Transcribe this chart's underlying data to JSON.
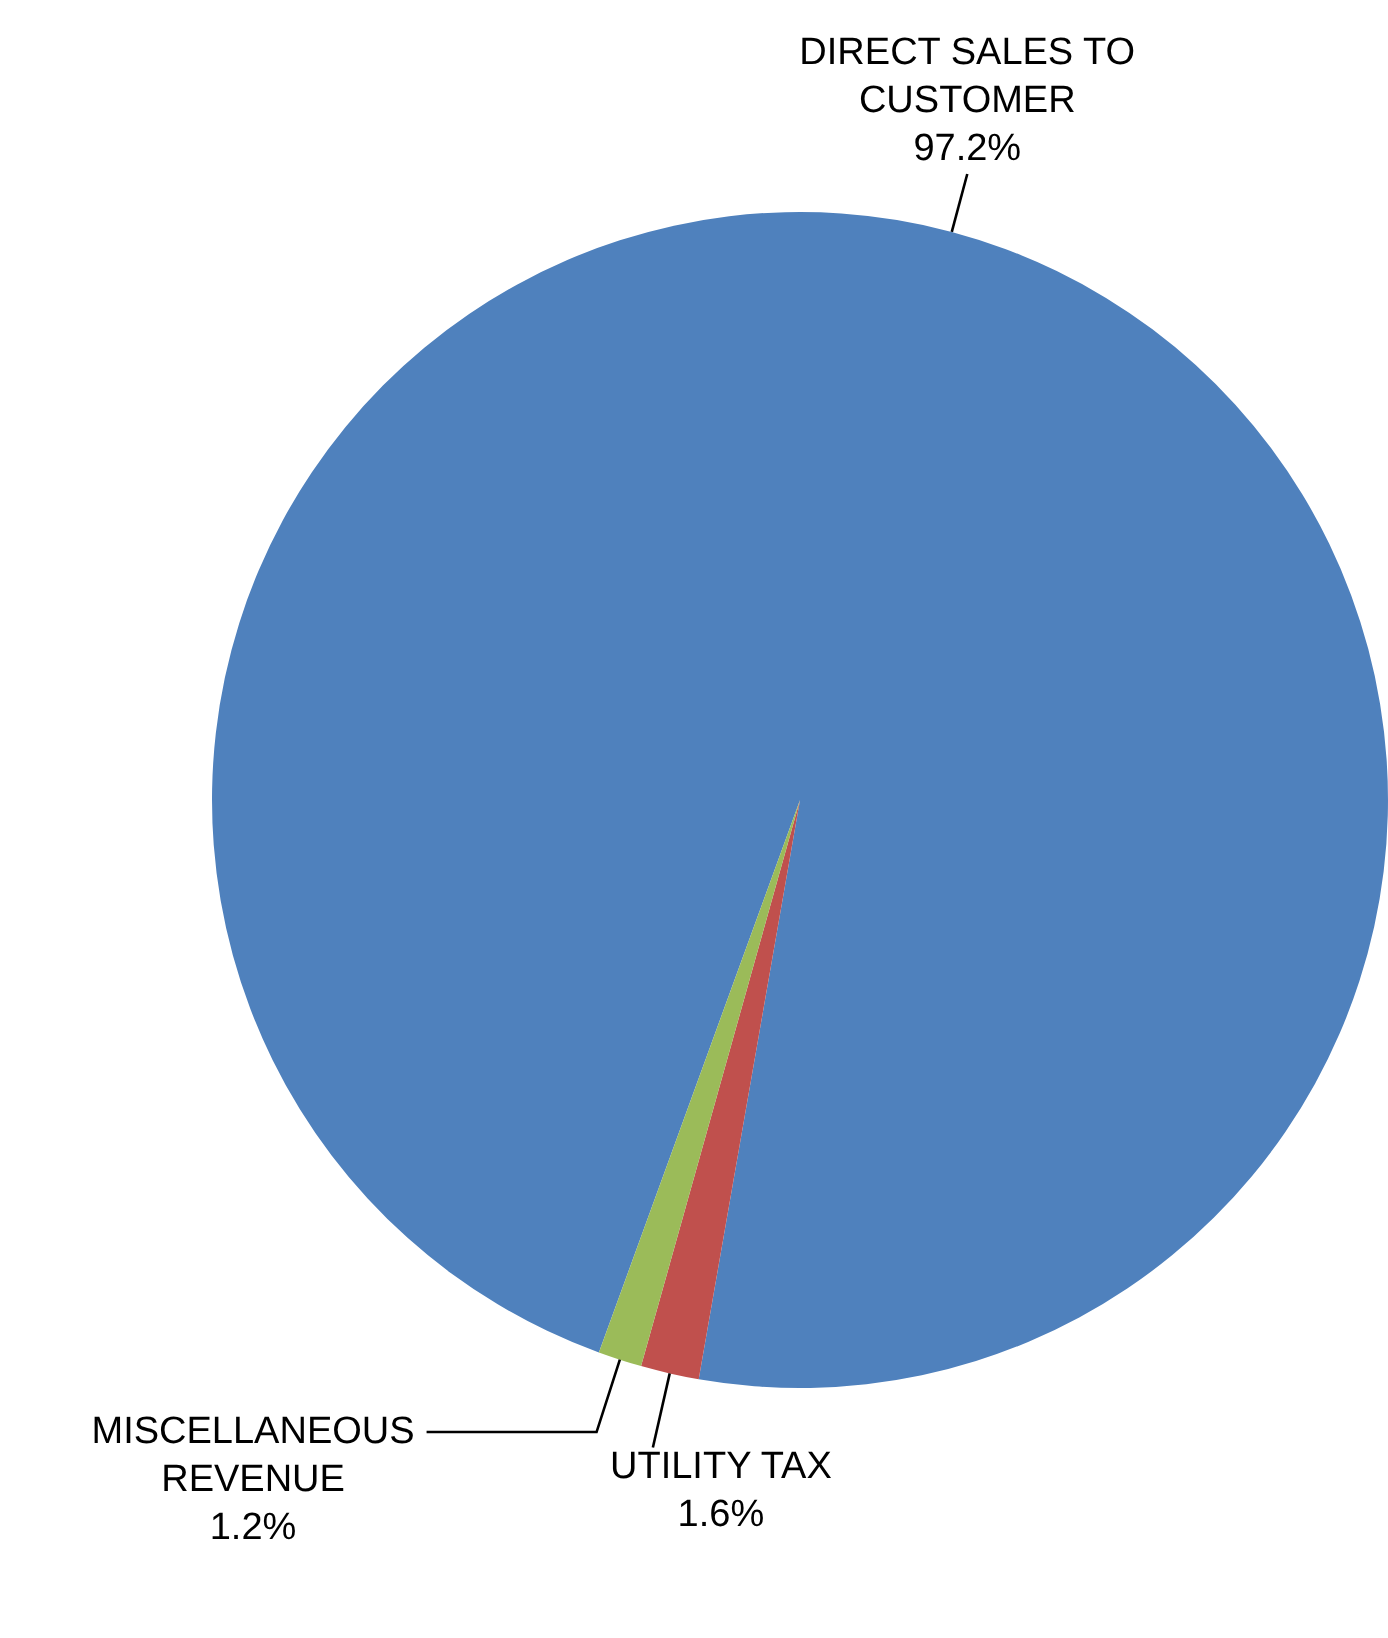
{
  "chart_data": {
    "type": "pie",
    "categories": [
      "DIRECT SALES TO CUSTOMER",
      "UTILITY TAX",
      "MISCELLANEOUS REVENUE"
    ],
    "values": [
      97.2,
      1.6,
      1.2
    ],
    "colors": [
      "#4f81bd",
      "#c0504d",
      "#9bbb59"
    ],
    "value_labels": [
      "97.2%",
      "1.6%",
      "1.2%"
    ],
    "legend": false
  }
}
